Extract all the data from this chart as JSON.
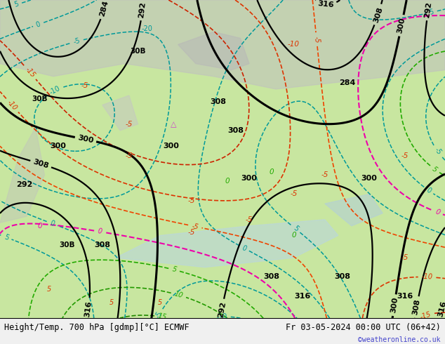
{
  "title_left": "Height/Temp. 700 hPa [gdmp][°C] ECMWF",
  "title_right": "Fr 03-05-2024 00:00 UTC (06+42)",
  "watermark": "©weatheronline.co.uk",
  "bg_color": "#c8e6a0",
  "fig_width": 6.34,
  "fig_height": 4.9,
  "dpi": 100,
  "bottom_bar_color": "#f0f0f0",
  "title_fontsize": 8.5,
  "watermark_color": "#4444cc",
  "watermark_fontsize": 7
}
